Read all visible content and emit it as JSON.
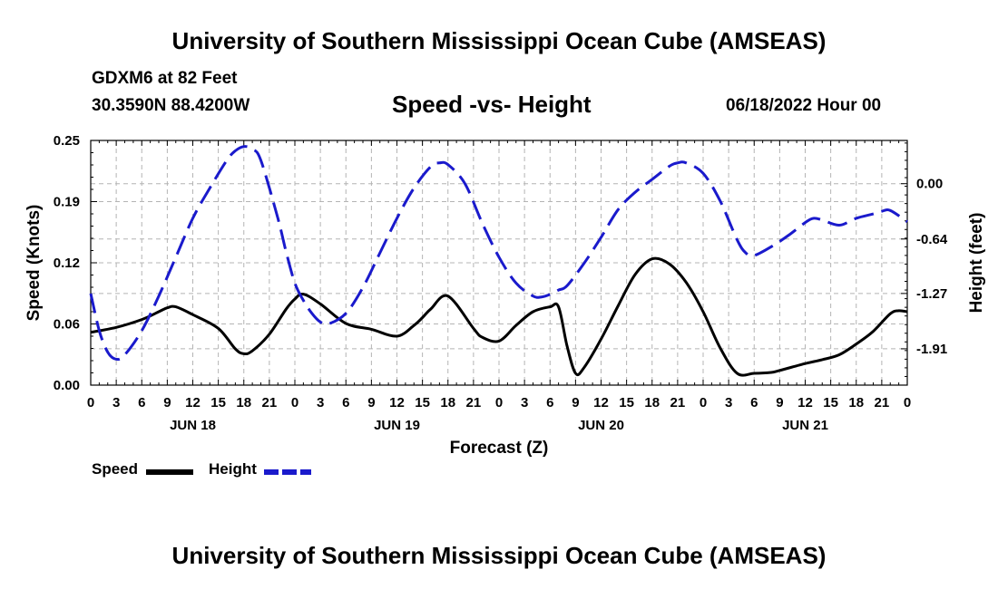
{
  "header": {
    "title": "University of Southern Mississippi Ocean Cube (AMSEAS)",
    "station": "GDXM6 at 82 Feet",
    "coords": "30.3590N  88.4200W",
    "subtitle": "Speed -vs- Height",
    "datetime": "06/18/2022 Hour 00"
  },
  "footer": {
    "title": "University of Southern Mississippi Ocean Cube (AMSEAS)"
  },
  "legend": {
    "speed_label": "Speed",
    "height_label": "Height"
  },
  "colors": {
    "speed": "#000000",
    "height": "#1a1acc",
    "grid": "#b4b4b4"
  },
  "chart_data": {
    "type": "line",
    "xlabel": "Forecast (Z)",
    "ylabel_left": "Speed (Knots)",
    "ylabel_right": "Height (feet)",
    "x_range": [
      0,
      96
    ],
    "y_left_range": [
      0,
      0.25
    ],
    "y_right_range": [
      -2.33,
      0.5
    ],
    "hour_tick_labels": [
      "0",
      "3",
      "6",
      "9",
      "12",
      "15",
      "18",
      "21",
      "0",
      "3",
      "6",
      "9",
      "12",
      "15",
      "18",
      "21",
      "0",
      "3",
      "6",
      "9",
      "12",
      "15",
      "18",
      "21",
      "0",
      "3",
      "6",
      "9",
      "12",
      "15",
      "18",
      "21",
      "0"
    ],
    "day_labels": [
      {
        "text": "JUN 18",
        "center_hour": 12
      },
      {
        "text": "JUN 19",
        "center_hour": 36
      },
      {
        "text": "JUN 20",
        "center_hour": 60
      },
      {
        "text": "JUN 21",
        "center_hour": 84
      }
    ],
    "y_left_ticks": [
      "0.00",
      "0.06",
      "0.12",
      "0.19",
      "0.25"
    ],
    "y_left_tick_values": [
      0.0,
      0.0625,
      0.125,
      0.1875,
      0.25
    ],
    "y_right_ticks": [
      "0.00",
      "-0.64",
      "-1.27",
      "-1.91"
    ],
    "y_right_tick_values": [
      0.0,
      -0.64,
      -1.27,
      -1.91
    ],
    "grid": true,
    "series": [
      {
        "name": "Speed",
        "axis": "left",
        "style": "solid",
        "x": [
          0,
          3,
          6,
          8,
          9,
          10,
          12,
          15,
          17,
          18,
          19,
          21,
          23,
          24,
          25,
          27,
          30,
          33,
          36,
          38,
          39,
          40,
          42,
          45,
          46,
          48,
          50,
          52,
          54,
          55,
          56,
          57,
          58,
          60,
          62,
          64,
          66,
          68,
          70,
          72,
          74,
          76,
          78,
          80,
          81,
          84,
          86,
          88,
          90,
          92,
          94,
          95,
          96
        ],
        "y": [
          0.054,
          0.059,
          0.067,
          0.075,
          0.079,
          0.08,
          0.072,
          0.058,
          0.037,
          0.032,
          0.035,
          0.052,
          0.078,
          0.088,
          0.093,
          0.083,
          0.063,
          0.057,
          0.05,
          0.061,
          0.069,
          0.078,
          0.091,
          0.058,
          0.049,
          0.045,
          0.061,
          0.075,
          0.08,
          0.08,
          0.04,
          0.012,
          0.018,
          0.047,
          0.081,
          0.113,
          0.129,
          0.124,
          0.105,
          0.075,
          0.038,
          0.012,
          0.012,
          0.013,
          0.015,
          0.022,
          0.026,
          0.031,
          0.042,
          0.055,
          0.073,
          0.076,
          0.075
        ]
      },
      {
        "name": "Height",
        "axis": "right",
        "style": "dashed",
        "x": [
          0,
          1,
          2,
          3,
          4,
          6,
          8,
          10,
          12,
          14,
          16,
          17,
          18,
          19,
          20,
          22,
          23,
          24,
          25,
          26,
          27,
          28,
          30,
          32,
          34,
          36,
          38,
          40,
          41,
          42,
          44,
          46,
          48,
          50,
          52,
          53,
          54,
          55,
          56,
          58,
          60,
          62,
          64,
          66,
          68,
          69,
          70,
          72,
          74,
          76,
          77,
          78,
          80,
          82,
          84,
          85,
          86,
          88,
          90,
          92,
          93,
          94,
          96
        ],
        "y": [
          -1.27,
          -1.7,
          -1.95,
          -2.03,
          -1.98,
          -1.7,
          -1.3,
          -0.85,
          -0.4,
          -0.05,
          0.27,
          0.38,
          0.43,
          0.4,
          0.27,
          -0.4,
          -0.8,
          -1.15,
          -1.35,
          -1.5,
          -1.6,
          -1.62,
          -1.5,
          -1.2,
          -0.8,
          -0.4,
          -0.05,
          0.2,
          0.24,
          0.22,
          0.0,
          -0.45,
          -0.85,
          -1.15,
          -1.3,
          -1.31,
          -1.28,
          -1.23,
          -1.18,
          -0.92,
          -0.62,
          -0.3,
          -0.1,
          0.05,
          0.2,
          0.24,
          0.24,
          0.12,
          -0.2,
          -0.65,
          -0.8,
          -0.83,
          -0.73,
          -0.6,
          -0.45,
          -0.4,
          -0.42,
          -0.48,
          -0.4,
          -0.35,
          -0.32,
          -0.31,
          -0.44
        ]
      }
    ]
  }
}
